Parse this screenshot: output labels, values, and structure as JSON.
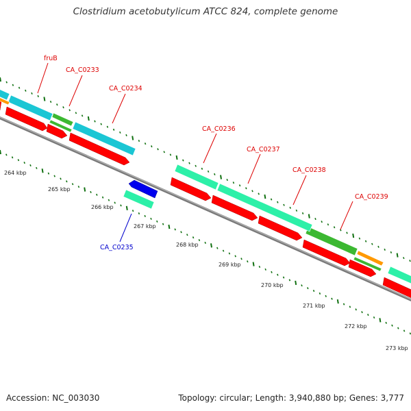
{
  "title": "Clostridium acetobutylicum ATCC 824, complete genome",
  "footer": {
    "accession": "Accession: NC_003030",
    "summary": "Topology: circular; Length: 3,940,880 bp; Genes: 3,777"
  },
  "colors": {
    "backbone": "#8c8c8c",
    "cds": "#ff0000",
    "rna": "#0000ee",
    "cog_cyan": "#1bc6d4",
    "cog_seagreen": "#2df0a8",
    "cog_green": "#3cb832",
    "cog_orange": "#ff9900",
    "gc_skew": "#107010",
    "label_plus": "#dd0000",
    "label_minus": "#0000cc"
  },
  "scale_labels": [
    "264 kbp",
    "265 kbp",
    "266 kbp",
    "267 kbp",
    "268 kbp",
    "269 kbp",
    "270 kbp",
    "271 kbp",
    "272 kbp",
    "273 kbp"
  ],
  "gene_labels": [
    {
      "text": "fruB",
      "strand": "plus"
    },
    {
      "text": "CA_C0233",
      "strand": "plus"
    },
    {
      "text": "CA_C0234",
      "strand": "plus"
    },
    {
      "text": "CA_C0235",
      "strand": "minus"
    },
    {
      "text": "CA_C0236",
      "strand": "plus"
    },
    {
      "text": "CA_C0237",
      "strand": "plus"
    },
    {
      "text": "CA_C0238",
      "strand": "plus"
    },
    {
      "text": "CA_C0239",
      "strand": "plus"
    }
  ]
}
